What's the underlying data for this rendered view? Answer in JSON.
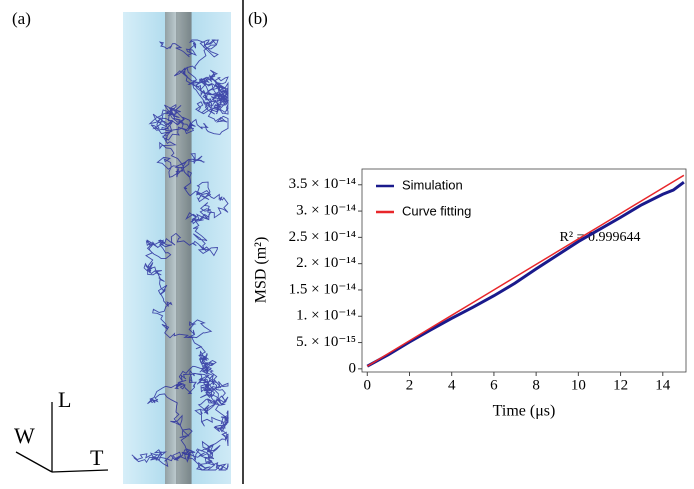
{
  "panel_a": {
    "label": "(a)",
    "axis_l": "L",
    "axis_w": "W",
    "axis_t": "T"
  },
  "chart_data": {
    "type": "line",
    "panel_label": "(b)",
    "xlabel": "Time (μs)",
    "ylabel": "MSD (m²)",
    "annotation": "R² = 0.999644",
    "x": [
      0,
      1,
      2,
      3,
      4,
      5,
      6,
      7,
      8,
      9,
      10,
      11,
      12,
      13,
      14,
      14.5,
      15
    ],
    "series": [
      {
        "name": "Simulation",
        "color": "#1a1a8c",
        "values": [
          5e-16,
          2.7e-15,
          5.1e-15,
          7.4e-15,
          9.6e-15,
          1.17e-14,
          1.39e-14,
          1.63e-14,
          1.9e-14,
          2.16e-14,
          2.42e-14,
          2.65e-14,
          2.88e-14,
          3.12e-14,
          3.32e-14,
          3.4e-14,
          3.55e-14
        ]
      },
      {
        "name": "Curve fitting",
        "color": "#e8262a",
        "values": [
          5e-16,
          2.92e-15,
          5.34e-15,
          7.76e-15,
          1.018e-14,
          1.26e-14,
          1.502e-14,
          1.744e-14,
          1.986e-14,
          2.228e-14,
          2.47e-14,
          2.712e-14,
          2.954e-14,
          3.196e-14,
          3.438e-14,
          3.559e-14,
          3.68e-14
        ]
      }
    ],
    "xlim": [
      -0.25,
      15.1
    ],
    "ylim": [
      -6e-16,
      3.8e-14
    ],
    "xticks": [
      0,
      2,
      4,
      6,
      8,
      10,
      12,
      14
    ],
    "yticks": [
      0,
      {
        "value": 5e-15,
        "label": "5. × 10⁻¹⁵"
      },
      {
        "value": 1e-14,
        "label": "1. × 10⁻¹⁴"
      },
      {
        "value": 1.5e-14,
        "label": "1.5 × 10⁻¹⁴"
      },
      {
        "value": 2e-14,
        "label": "2. × 10⁻¹⁴"
      },
      {
        "value": 2.5e-14,
        "label": "2.5 × 10⁻¹⁴"
      },
      {
        "value": 3e-14,
        "label": "3. × 10⁻¹⁴"
      },
      {
        "value": 3.5e-14,
        "label": "3.5 × 10⁻¹⁴"
      }
    ],
    "legend": "upper left",
    "grid": false
  }
}
